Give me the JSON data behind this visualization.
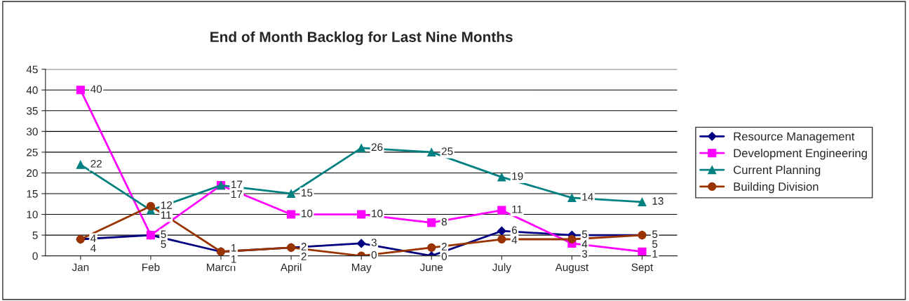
{
  "chart_data": {
    "type": "line",
    "title": "End of Month Backlog for Last Nine Months",
    "categories": [
      "Jan",
      "Feb",
      "March",
      "April",
      "May",
      "June",
      "July",
      "August",
      "Sept"
    ],
    "series": [
      {
        "name": "Resource Management",
        "color": "#000080",
        "marker": "diamond",
        "values": [
          4,
          5,
          1,
          2,
          3,
          0,
          6,
          5,
          5
        ]
      },
      {
        "name": "Development Engineering",
        "color": "#ff00ff",
        "marker": "square",
        "values": [
          40,
          5,
          17,
          10,
          10,
          8,
          11,
          3,
          1
        ]
      },
      {
        "name": "Current Planning",
        "color": "#008080",
        "marker": "triangle",
        "values": [
          22,
          11,
          17,
          15,
          26,
          25,
          19,
          14,
          13
        ]
      },
      {
        "name": "Building Division",
        "color": "#993300",
        "marker": "circle",
        "values": [
          4,
          12,
          1,
          2,
          0,
          2,
          4,
          4,
          5
        ]
      }
    ],
    "ylim": [
      0,
      45
    ],
    "yticks": [
      0,
      5,
      10,
      15,
      20,
      25,
      30,
      35,
      40,
      45
    ],
    "grid": "y",
    "legend": "right",
    "data_labels": true
  }
}
